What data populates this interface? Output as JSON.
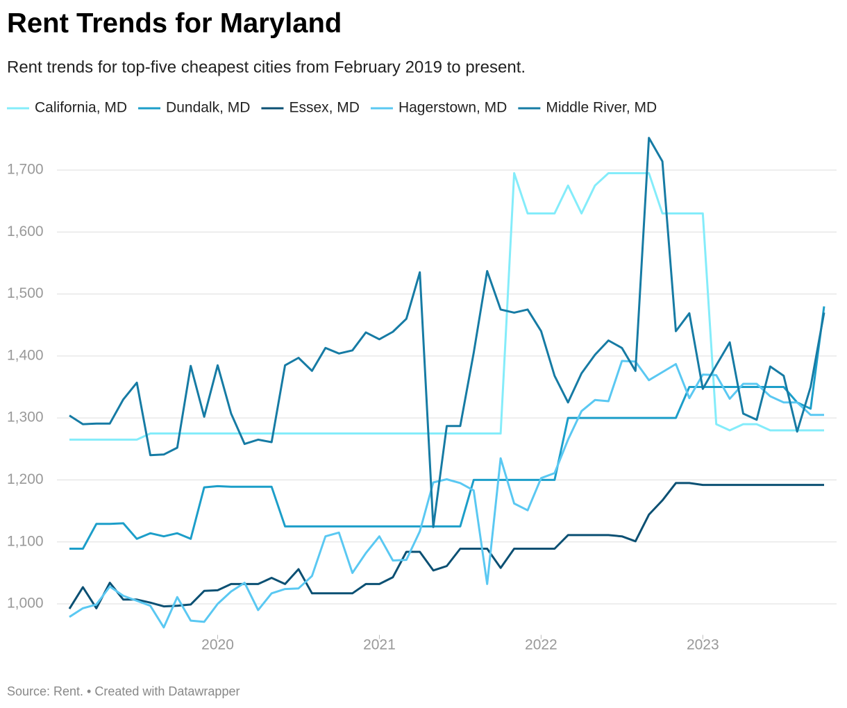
{
  "chart_data": {
    "type": "line",
    "title": "Rent Trends for Maryland",
    "subtitle": "Rent trends for top-five cheapest cities from February 2019 to present.",
    "source": "Source: Rent. • Created with Datawrapper",
    "x": [
      "2019-02",
      "2019-03",
      "2019-04",
      "2019-05",
      "2019-06",
      "2019-07",
      "2019-08",
      "2019-09",
      "2019-10",
      "2019-11",
      "2019-12",
      "2020-01",
      "2020-02",
      "2020-03",
      "2020-04",
      "2020-05",
      "2020-06",
      "2020-07",
      "2020-08",
      "2020-09",
      "2020-10",
      "2020-11",
      "2020-12",
      "2021-01",
      "2021-02",
      "2021-03",
      "2021-04",
      "2021-05",
      "2021-06",
      "2021-07",
      "2021-08",
      "2021-09",
      "2021-10",
      "2021-11",
      "2021-12",
      "2022-01",
      "2022-02",
      "2022-03",
      "2022-04",
      "2022-05",
      "2022-06",
      "2022-07",
      "2022-08",
      "2022-09",
      "2022-10",
      "2022-11",
      "2022-12",
      "2023-01",
      "2023-02",
      "2023-03",
      "2023-04",
      "2023-05",
      "2023-06",
      "2023-07",
      "2023-08",
      "2023-09",
      "2023-10"
    ],
    "xlim": [
      "2019-02",
      "2023-10"
    ],
    "xticks": [
      {
        "value": "2020-01",
        "label": "2020"
      },
      {
        "value": "2021-01",
        "label": "2021"
      },
      {
        "value": "2022-01",
        "label": "2022"
      },
      {
        "value": "2023-01",
        "label": "2023"
      }
    ],
    "ylim": [
      950,
      1760
    ],
    "yticks": [
      {
        "value": 1000,
        "label": "1,000"
      },
      {
        "value": 1100,
        "label": "1,100"
      },
      {
        "value": 1200,
        "label": "1,200"
      },
      {
        "value": 1300,
        "label": "1,300"
      },
      {
        "value": 1400,
        "label": "1,400"
      },
      {
        "value": 1500,
        "label": "1,500"
      },
      {
        "value": 1600,
        "label": "1,600"
      },
      {
        "value": 1700,
        "label": "1,700"
      }
    ],
    "grid": true,
    "series": [
      {
        "name": "California, MD",
        "color": "#84ecfa",
        "values": [
          1265,
          1265,
          1265,
          1265,
          1265,
          1265,
          1275,
          1275,
          1275,
          1275,
          1275,
          1275,
          1275,
          1275,
          1275,
          1275,
          1275,
          1275,
          1275,
          1275,
          1275,
          1275,
          1275,
          1275,
          1275,
          1275,
          1275,
          1275,
          1275,
          1275,
          1275,
          1275,
          1275,
          1695,
          1630,
          1630,
          1630,
          1675,
          1630,
          1675,
          1695,
          1695,
          1695,
          1695,
          1630,
          1630,
          1630,
          1630,
          1290,
          1280,
          1290,
          1290,
          1280,
          1280,
          1280,
          1280,
          1280
        ]
      },
      {
        "name": "Dundalk, MD",
        "color": "#1c9ec9",
        "values": [
          1089,
          1089,
          1129,
          1129,
          1130,
          1105,
          1114,
          1109,
          1114,
          1105,
          1188,
          1190,
          1189,
          1189,
          1189,
          1189,
          1125,
          1125,
          1125,
          1125,
          1125,
          1125,
          1125,
          1125,
          1125,
          1125,
          1125,
          1125,
          1125,
          1125,
          1200,
          1200,
          1200,
          1200,
          1200,
          1200,
          1200,
          1300,
          1300,
          1300,
          1300,
          1300,
          1300,
          1300,
          1300,
          1300,
          1350,
          1350,
          1350,
          1350,
          1350,
          1350,
          1350,
          1350,
          1325,
          1315,
          1480
        ]
      },
      {
        "name": "Essex, MD",
        "color": "#0b5073",
        "values": [
          992,
          1027,
          993,
          1034,
          1007,
          1007,
          1002,
          996,
          997,
          999,
          1021,
          1022,
          1032,
          1032,
          1032,
          1042,
          1032,
          1056,
          1017,
          1017,
          1017,
          1017,
          1032,
          1032,
          1043,
          1084,
          1084,
          1054,
          1061,
          1089,
          1089,
          1089,
          1058,
          1089,
          1089,
          1089,
          1089,
          1111,
          1111,
          1111,
          1111,
          1109,
          1101,
          1144,
          1167,
          1195,
          1195,
          1192,
          1192,
          1192,
          1192,
          1192,
          1192,
          1192,
          1192,
          1192,
          1192
        ]
      },
      {
        "name": "Hagerstown, MD",
        "color": "#5ac8f2",
        "values": [
          979,
          993,
          999,
          1028,
          1013,
          1005,
          997,
          962,
          1011,
          973,
          971,
          1000,
          1020,
          1034,
          990,
          1017,
          1024,
          1025,
          1045,
          1109,
          1115,
          1050,
          1082,
          1109,
          1070,
          1071,
          1117,
          1196,
          1201,
          1195,
          1183,
          1032,
          1235,
          1162,
          1151,
          1203,
          1211,
          1265,
          1311,
          1329,
          1327,
          1392,
          1391,
          1361,
          1374,
          1387,
          1332,
          1370,
          1369,
          1331,
          1355,
          1355,
          1335,
          1325,
          1325,
          1305,
          1305
        ]
      },
      {
        "name": "Middle River, MD",
        "color": "#167ba4",
        "values": [
          1304,
          1290,
          1291,
          1291,
          1330,
          1357,
          1240,
          1241,
          1252,
          1384,
          1302,
          1385,
          1307,
          1258,
          1265,
          1261,
          1385,
          1397,
          1376,
          1413,
          1404,
          1409,
          1438,
          1427,
          1439,
          1460,
          1535,
          1124,
          1287,
          1287,
          1405,
          1537,
          1475,
          1470,
          1475,
          1440,
          1368,
          1325,
          1372,
          1402,
          1425,
          1413,
          1376,
          1752,
          1714,
          1440,
          1469,
          1347,
          1385,
          1422,
          1307,
          1297,
          1383,
          1368,
          1278,
          1350,
          1470
        ]
      }
    ]
  }
}
